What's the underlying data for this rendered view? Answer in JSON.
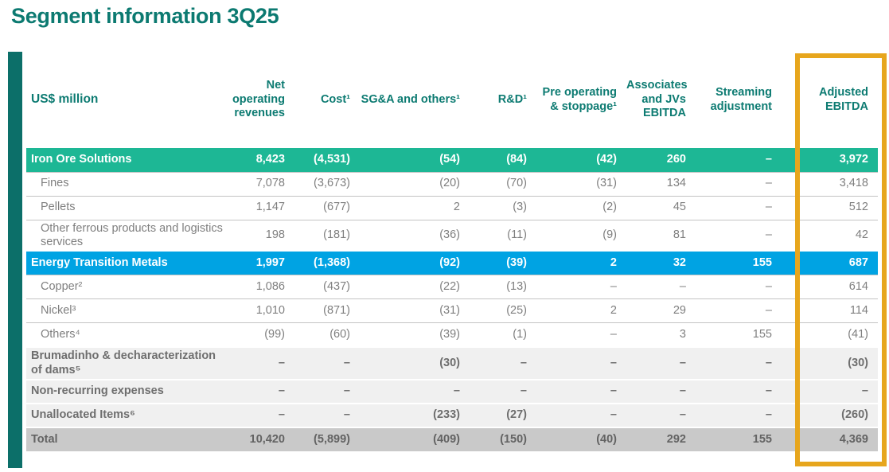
{
  "title": "Segment information 3Q25",
  "table": {
    "unit_label": "US$ million",
    "columns": [
      "Net operating revenues",
      "Cost¹",
      "SG&A and others¹",
      "R&D¹",
      "Pre operating & stoppage¹",
      "Associates and JVs EBITDA",
      "Streaming adjustment",
      "Adjusted EBITDA"
    ],
    "rows": [
      {
        "label": "Iron Ore Solutions",
        "kind": "seg-green",
        "values": [
          "8,423",
          "(4,531)",
          "(54)",
          "(84)",
          "(42)",
          "260",
          "–",
          "3,972"
        ]
      },
      {
        "label": "Fines",
        "kind": "sub",
        "values": [
          "7,078",
          "(3,673)",
          "(20)",
          "(70)",
          "(31)",
          "134",
          "–",
          "3,418"
        ]
      },
      {
        "label": "Pellets",
        "kind": "sub",
        "values": [
          "1,147",
          "(677)",
          "2",
          "(3)",
          "(2)",
          "45",
          "–",
          "512"
        ]
      },
      {
        "label": "Other ferrous products and logistics services",
        "kind": "sub",
        "values": [
          "198",
          "(181)",
          "(36)",
          "(11)",
          "(9)",
          "81",
          "–",
          "42"
        ]
      },
      {
        "label": "Energy Transition Metals",
        "kind": "seg-blue",
        "values": [
          "1,997",
          "(1,368)",
          "(92)",
          "(39)",
          "2",
          "32",
          "155",
          "687"
        ]
      },
      {
        "label": "Copper²",
        "kind": "sub",
        "values": [
          "1,086",
          "(437)",
          "(22)",
          "(13)",
          "–",
          "–",
          "–",
          "614"
        ]
      },
      {
        "label": "Nickel³",
        "kind": "sub",
        "values": [
          "1,010",
          "(871)",
          "(31)",
          "(25)",
          "2",
          "29",
          "–",
          "114"
        ]
      },
      {
        "label": "Others⁴",
        "kind": "sub",
        "values": [
          "(99)",
          "(60)",
          "(39)",
          "(1)",
          "–",
          "3",
          "155",
          "(41)"
        ]
      },
      {
        "label": "Brumadinho & decharacterization of dams⁵",
        "kind": "gray",
        "values": [
          "–",
          "–",
          "(30)",
          "–",
          "–",
          "–",
          "–",
          "(30)"
        ]
      },
      {
        "label": "Non-recurring expenses",
        "kind": "gray",
        "values": [
          "–",
          "–",
          "–",
          "–",
          "–",
          "–",
          "–",
          "–"
        ]
      },
      {
        "label": "Unallocated Items⁶",
        "kind": "gray",
        "values": [
          "–",
          "–",
          "(233)",
          "(27)",
          "–",
          "–",
          "–",
          "(260)"
        ]
      },
      {
        "label": "Total",
        "kind": "total",
        "values": [
          "10,420",
          "(5,899)",
          "(409)",
          "(150)",
          "(40)",
          "292",
          "155",
          "4,369"
        ]
      }
    ]
  },
  "colors": {
    "title_teal": "#0c7a71",
    "accent_bar_teal": "#0c6f69",
    "iron_ore_green": "#1db795",
    "energy_blue": "#00a3e3",
    "highlight_gold": "#e7a61d",
    "gray_row_bg": "#f0f0f0",
    "total_row_bg": "#c9c9c9"
  }
}
